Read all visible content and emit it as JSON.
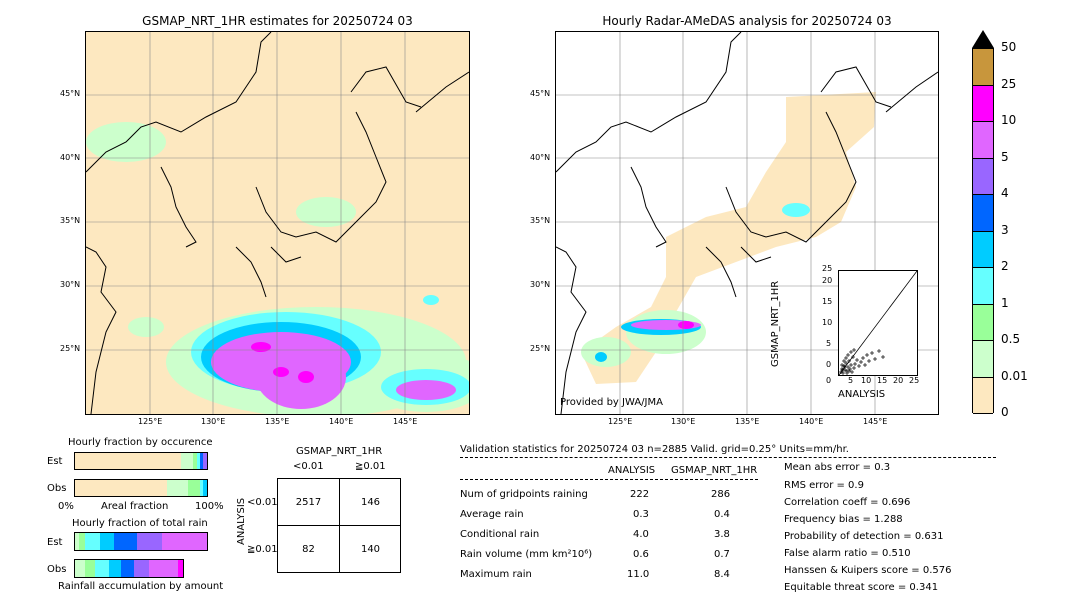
{
  "left_map": {
    "title": "GSMAP_NRT_1HR estimates for 20250724 03",
    "lat_labels": [
      "45°N",
      "40°N",
      "35°N",
      "30°N",
      "25°N"
    ],
    "lon_labels": [
      "125°E",
      "130°E",
      "135°E",
      "140°E",
      "145°E"
    ]
  },
  "right_map": {
    "title": "Hourly Radar-AMeDAS analysis for 20250724 03",
    "lat_labels": [
      "45°N",
      "40°N",
      "35°N",
      "30°N",
      "25°N"
    ],
    "lon_labels": [
      "125°E",
      "130°E",
      "135°E",
      "140°E",
      "145°E"
    ],
    "credit": "Provided by JWA/JMA"
  },
  "colorbar": {
    "labels": [
      "50",
      "25",
      "10",
      "5",
      "4",
      "3",
      "2",
      "1",
      "0.5",
      "0.01",
      "0"
    ],
    "colors": [
      "#c8963c",
      "#ff00ff",
      "#e066ff",
      "#9966ff",
      "#0066ff",
      "#00ccff",
      "#66ffff",
      "#99ff99",
      "#ccffcc",
      "#fde8c0"
    ]
  },
  "scatter": {
    "ylabel": "GSMAP_NRT_1HR",
    "xlabel": "ANALYSIS",
    "ticks": [
      "0",
      "5",
      "10",
      "15",
      "20",
      "25"
    ]
  },
  "fraction_occurrence": {
    "title": "Hourly fraction by occurence",
    "rows": [
      "Est",
      "Obs"
    ],
    "axis_left": "0%",
    "axis_mid": "Areal fraction",
    "axis_right": "100%"
  },
  "fraction_total": {
    "title": "Hourly fraction of total rain",
    "rows": [
      "Est",
      "Obs"
    ],
    "caption": "Rainfall accumulation by amount"
  },
  "contingency": {
    "title": "GSMAP_NRT_1HR",
    "col_labels": [
      "<0.01",
      "≧0.01"
    ],
    "row_axis": "ANALYSIS",
    "row_labels": [
      "<0.01",
      "≧0.01"
    ],
    "cells": [
      [
        "2517",
        "146"
      ],
      [
        "82",
        "140"
      ]
    ]
  },
  "validation": {
    "header": "Validation statistics for 20250724 03  n=2885 Valid. grid=0.25° Units=mm/hr.",
    "col_analysis": "ANALYSIS",
    "col_gsmap": "GSMAP_NRT_1HR",
    "rows": [
      {
        "label": "Num of gridpoints raining",
        "a": "222",
        "g": "286"
      },
      {
        "label": "Average rain",
        "a": "0.3",
        "g": "0.4"
      },
      {
        "label": "Conditional rain",
        "a": "4.0",
        "g": "3.8"
      },
      {
        "label": "Rain volume (mm km²10⁶)",
        "a": "0.6",
        "g": "0.7"
      },
      {
        "label": "Maximum rain",
        "a": "11.0",
        "g": "8.4"
      }
    ],
    "scores": [
      "Mean abs error =    0.3",
      "RMS error =    0.9",
      "Correlation coeff =  0.696",
      "Frequency bias =  1.288",
      "Probability of detection =  0.631",
      "False alarm ratio =  0.510",
      "Hanssen & Kuipers score =  0.576",
      "Equitable threat score =  0.341"
    ]
  }
}
